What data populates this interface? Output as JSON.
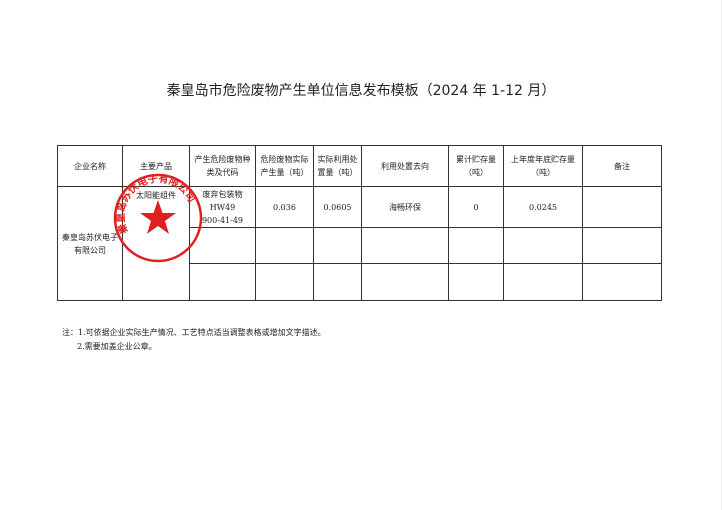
{
  "title": "秦皇岛市危险废物产生单位信息发布模板（2024 年 1-12 月）",
  "table": {
    "headers": [
      "企业名称",
      "主要产品",
      "产生危险废物种类及代码",
      "危险废物实际产生量（吨）",
      "实际利用处置量（吨）",
      "利用处置去向",
      "累计贮存量（吨）",
      "上年度年底贮存量（吨）",
      "备注"
    ],
    "company": "秦皇岛苏伏电子有限公司",
    "product": "太阳能组件",
    "waste": [
      "废弃包装物",
      "HW49",
      "900-41-49"
    ],
    "generated": "0.036",
    "disposed": "0.0605",
    "destination": "海畅环保",
    "cumulative_storage": "0",
    "last_year_storage": "0.0245",
    "remark": ""
  },
  "stamp": {
    "text": "秦皇岛苏伏电子有限公司",
    "color": "#e02020"
  },
  "notes": [
    "注：1.可依据企业实际生产情况、工艺特点适当调整表格或增加文字描述。",
    "2.需要加盖企业公章。"
  ]
}
